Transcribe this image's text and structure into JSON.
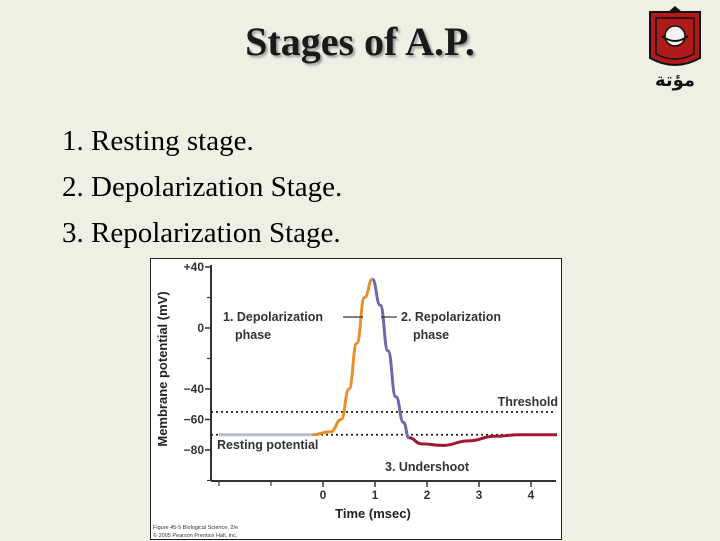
{
  "slide": {
    "title": "Stages of A.P.",
    "stages": [
      "1. Resting stage.",
      "2. Depolarization Stage.",
      "3. Repolarization Stage."
    ],
    "logo_text": "مؤتة"
  },
  "figure": {
    "ylabel": "Membrane potential (mV)",
    "xlabel": "Time (msec)",
    "y_ticks": [
      "+40",
      "0",
      "−40",
      "−60",
      "−80"
    ],
    "x_ticks": [
      "0",
      "1",
      "2",
      "3",
      "4"
    ],
    "labels": {
      "depolarization_line1": "1. Depolarization",
      "depolarization_line2": "phase",
      "repolarization_line1": "2. Repolarization",
      "repolarization_line2": "phase",
      "threshold": "Threshold",
      "resting": "Resting potential",
      "undershoot": "3. Undershoot"
    },
    "credit_line1": "Figure 45-5 Biological Science, 2/e",
    "credit_line2": "© 2005 Pearson Prentice Hall, Inc.",
    "colors": {
      "resting": "#b8bcc8",
      "depolarization": "#e6902a",
      "repolarization": "#6a6aa8",
      "undershoot": "#a0182e"
    }
  },
  "chart_data": {
    "type": "line",
    "title": "",
    "xlabel": "Time (msec)",
    "ylabel": "Membrane potential (mV)",
    "xlim": [
      -2,
      4.5
    ],
    "ylim": [
      -100,
      40
    ],
    "threshold": -55,
    "resting_potential": -70,
    "series": [
      {
        "name": "1. Depolarization phase",
        "x": [
          -2,
          -0.2,
          0.15,
          0.35,
          0.5,
          0.65,
          0.8,
          0.95
        ],
        "y": [
          -70,
          -70,
          -68,
          -60,
          -40,
          -10,
          20,
          32
        ]
      },
      {
        "name": "2. Repolarization phase",
        "x": [
          0.95,
          1.1,
          1.25,
          1.4,
          1.55,
          1.65
        ],
        "y": [
          32,
          15,
          -15,
          -45,
          -62,
          -72
        ]
      },
      {
        "name": "3. Undershoot",
        "x": [
          1.65,
          1.9,
          2.3,
          2.8,
          3.3,
          3.8,
          4.5
        ],
        "y": [
          -72,
          -76,
          -77,
          -74,
          -71,
          -70,
          -70
        ]
      }
    ]
  }
}
